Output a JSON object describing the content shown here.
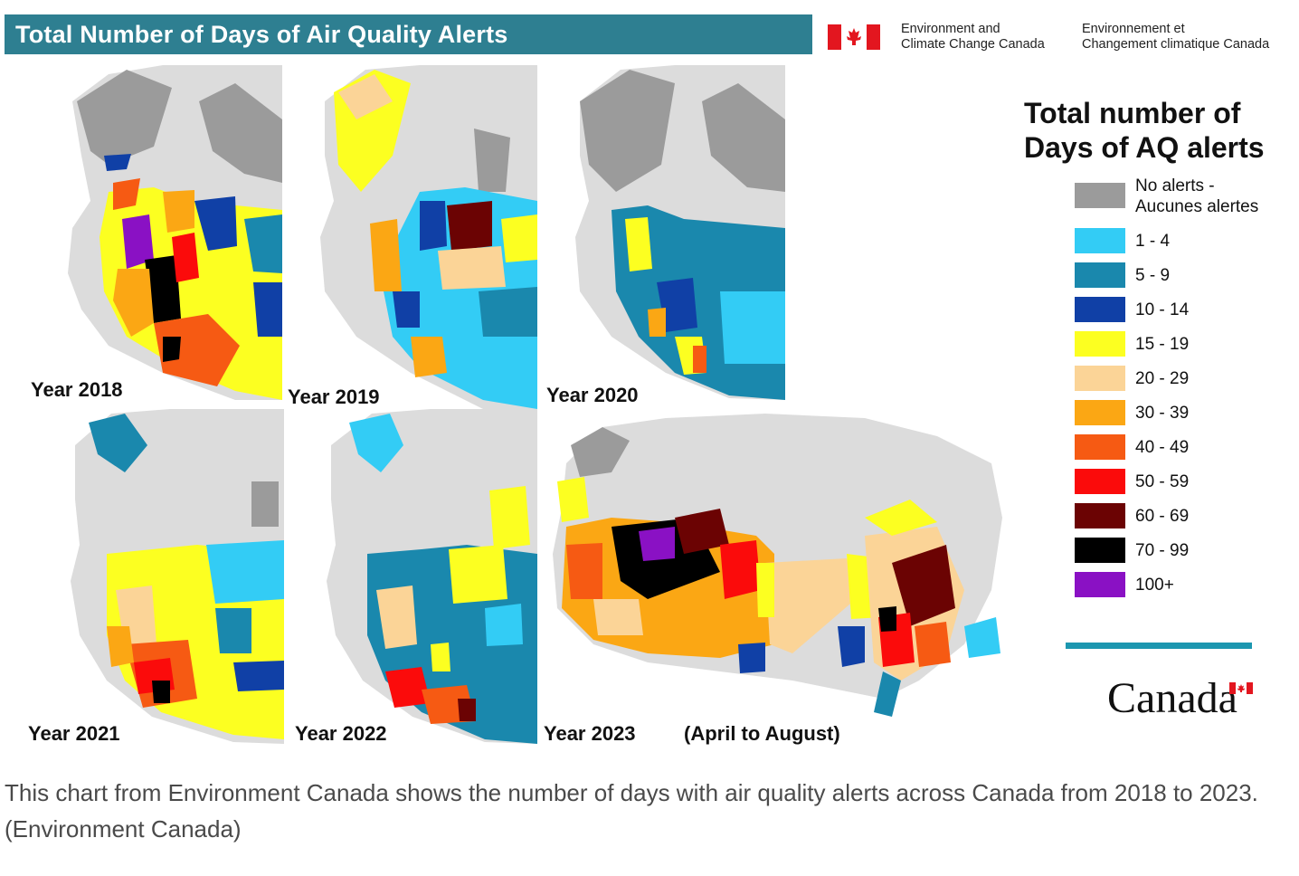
{
  "header": {
    "title": "Total Number of Days of Air Quality Alerts",
    "department_en_line1": "Environment and",
    "department_en_line2": "Climate Change Canada",
    "department_fr_line1": "Environnement et",
    "department_fr_line2": "Changement climatique Canada"
  },
  "panels": [
    {
      "label": "Year 2018"
    },
    {
      "label": "Year 2019"
    },
    {
      "label": "Year 2020"
    },
    {
      "label": "Year 2021"
    },
    {
      "label": "Year 2022"
    },
    {
      "label": "Year 2023",
      "note": "(April to August)"
    }
  ],
  "legend": {
    "title_line1": "Total number of",
    "title_line2": "Days of AQ alerts",
    "items": [
      {
        "label_line1": "No alerts -",
        "label_line2": "Aucunes alertes",
        "color": "#9b9b9b"
      },
      {
        "label_line1": "1 - 4",
        "color": "#33ccf5"
      },
      {
        "label_line1": "5 - 9",
        "color": "#1a88ad"
      },
      {
        "label_line1": "10 - 14",
        "color": "#1040a6"
      },
      {
        "label_line1": "15 - 19",
        "color": "#fcff21"
      },
      {
        "label_line1": "20 - 29",
        "color": "#fbd497"
      },
      {
        "label_line1": "30 - 39",
        "color": "#fba714"
      },
      {
        "label_line1": "40 - 49",
        "color": "#f65a13"
      },
      {
        "label_line1": "50 - 59",
        "color": "#fb0b0b"
      },
      {
        "label_line1": "60 - 69",
        "color": "#6b0303"
      },
      {
        "label_line1": "70 - 99",
        "color": "#000000"
      },
      {
        "label_line1": "100+",
        "color": "#8a11c4"
      }
    ]
  },
  "wordmark": "Canada",
  "caption": "This chart from Environment Canada shows the number of days with air quality alerts across Canada from 2018 to 2023. (Environment Canada)",
  "colors": {
    "title_bar": "#2e7f91",
    "divider": "#1c97b0",
    "flag_red": "#e3161f",
    "land_grey": "#dcdcdc",
    "no_alert_grey": "#9b9b9b"
  }
}
